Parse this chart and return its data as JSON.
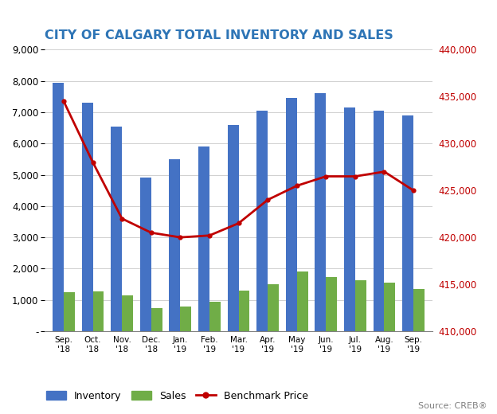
{
  "title": "CITY OF CALGARY TOTAL INVENTORY AND SALES",
  "months": [
    "Sep.",
    "Oct.",
    "Nov.",
    "Dec.",
    "Jan.",
    "Feb.",
    "Mar.",
    "Apr.",
    "May",
    "Jun.",
    "Jul.",
    "Aug.",
    "Sep."
  ],
  "years": [
    "'18",
    "'18",
    "'18",
    "'18",
    "'19",
    "'19",
    "'19",
    "'19",
    "'19",
    "'19",
    "'19",
    "'19",
    "'19"
  ],
  "inventory": [
    7950,
    7300,
    6550,
    4900,
    5500,
    5900,
    6600,
    7050,
    7450,
    7600,
    7150,
    7050,
    6900
  ],
  "sales": [
    1250,
    1270,
    1150,
    750,
    780,
    950,
    1300,
    1500,
    1900,
    1720,
    1620,
    1550,
    1350
  ],
  "benchmark_price": [
    434500,
    428000,
    422000,
    420500,
    420000,
    420200,
    421500,
    424000,
    425500,
    426500,
    426500,
    427000,
    425000
  ],
  "inventory_color": "#4472C4",
  "sales_color": "#70AD47",
  "benchmark_color": "#C00000",
  "left_ylim": [
    0,
    9000
  ],
  "left_yticks": [
    0,
    1000,
    2000,
    3000,
    4000,
    5000,
    6000,
    7000,
    8000,
    9000
  ],
  "right_ylim": [
    410000,
    440000
  ],
  "right_yticks": [
    410000,
    415000,
    420000,
    425000,
    430000,
    435000,
    440000
  ],
  "source_text": "Source: CREB®",
  "title_color": "#2E75B6",
  "right_tick_color": "#C00000",
  "background_color": "#FFFFFF"
}
